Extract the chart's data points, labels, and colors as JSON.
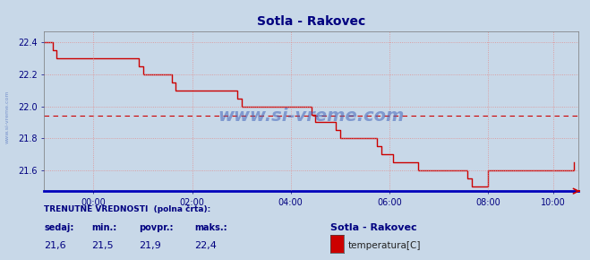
{
  "title": "Sotla - Rakovec",
  "title_color": "#000080",
  "title_fontsize": 10,
  "bg_color": "#c8d8e8",
  "plot_bg_color": "#c8d8e8",
  "grid_color": "#e09090",
  "line_color": "#cc0000",
  "avg_value": 21.94,
  "xlim_min": 0,
  "xlim_max": 130,
  "ylim_min": 21.47,
  "ylim_max": 22.47,
  "yticks": [
    21.6,
    21.8,
    22.0,
    22.2,
    22.4
  ],
  "xtick_labels": [
    "00:00",
    "02:00",
    "04:00",
    "06:00",
    "08:00",
    "10:00"
  ],
  "xtick_positions": [
    12,
    36,
    60,
    84,
    108,
    124
  ],
  "watermark": "www.si-vreme.com",
  "watermark_color": "#4466bb",
  "sidewatermark": "www.si-vreme.com",
  "footer_title": "TRENUTNE VREDNOSTI  (polna črta):",
  "footer_label1": "sedaj:",
  "footer_label2": "min.:",
  "footer_label3": "povpr.:",
  "footer_label4": "maks.:",
  "footer_val1": "21,6",
  "footer_val2": "21,5",
  "footer_val3": "21,9",
  "footer_val4": "22,4",
  "footer_station": "Sotla - Rakovec",
  "footer_legend_label": "temperatura[C]",
  "footer_legend_color": "#cc0000",
  "footer_color": "#000080",
  "temperature_data": [
    22.4,
    22.4,
    22.35,
    22.3,
    22.3,
    22.3,
    22.3,
    22.3,
    22.3,
    22.3,
    22.3,
    22.3,
    22.3,
    22.3,
    22.3,
    22.3,
    22.3,
    22.3,
    22.3,
    22.3,
    22.3,
    22.3,
    22.3,
    22.25,
    22.2,
    22.2,
    22.2,
    22.2,
    22.2,
    22.2,
    22.2,
    22.15,
    22.1,
    22.1,
    22.1,
    22.1,
    22.1,
    22.1,
    22.1,
    22.1,
    22.1,
    22.1,
    22.1,
    22.1,
    22.1,
    22.1,
    22.1,
    22.05,
    22.0,
    22.0,
    22.0,
    22.0,
    22.0,
    22.0,
    22.0,
    22.0,
    22.0,
    22.0,
    22.0,
    22.0,
    22.0,
    22.0,
    22.0,
    22.0,
    22.0,
    21.95,
    21.9,
    21.9,
    21.9,
    21.9,
    21.9,
    21.85,
    21.8,
    21.8,
    21.8,
    21.8,
    21.8,
    21.8,
    21.8,
    21.8,
    21.8,
    21.75,
    21.7,
    21.7,
    21.7,
    21.65,
    21.65,
    21.65,
    21.65,
    21.65,
    21.65,
    21.6,
    21.6,
    21.6,
    21.6,
    21.6,
    21.6,
    21.6,
    21.6,
    21.6,
    21.6,
    21.6,
    21.6,
    21.55,
    21.5,
    21.5,
    21.5,
    21.5,
    21.6,
    21.6,
    21.6,
    21.6,
    21.6,
    21.6,
    21.6,
    21.6,
    21.6,
    21.6,
    21.6,
    21.6,
    21.6,
    21.6,
    21.6,
    21.6,
    21.6,
    21.6,
    21.6,
    21.6,
    21.6,
    21.65
  ]
}
